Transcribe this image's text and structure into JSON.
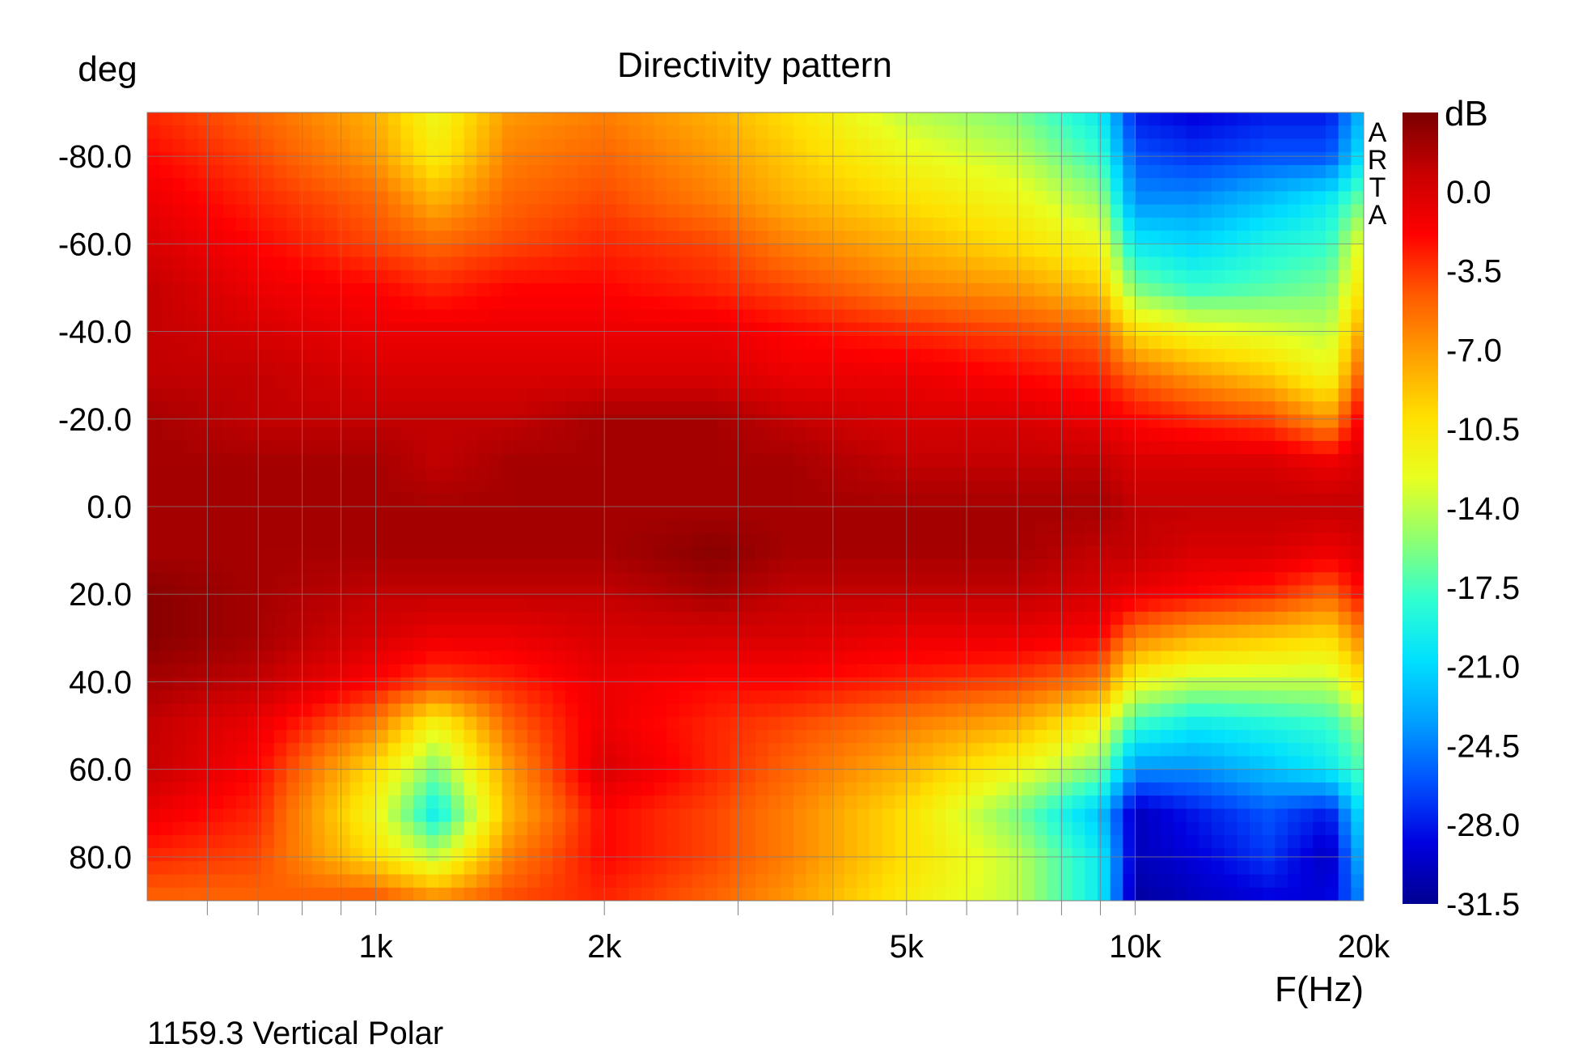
{
  "chart_data": {
    "type": "heatmap",
    "title": "Directivity pattern",
    "ylabel": "deg",
    "xlabel": "F(Hz)",
    "colorbar_label": "dB",
    "footer": "1159.3 Vertical Polar",
    "brand_letters": [
      "A",
      "R",
      "T",
      "A"
    ],
    "x_scale": "log",
    "xlim": [
      500,
      20000
    ],
    "ylim": [
      -90,
      90
    ],
    "y_reversed": true,
    "grid": true,
    "x_ticks": [
      {
        "value": 1000,
        "label": "1k"
      },
      {
        "value": 2000,
        "label": "2k"
      },
      {
        "value": 5000,
        "label": "5k"
      },
      {
        "value": 10000,
        "label": "10k"
      },
      {
        "value": 20000,
        "label": "20k"
      }
    ],
    "y_ticks": [
      {
        "value": -80,
        "label": "-80.0"
      },
      {
        "value": -60,
        "label": "-60.0"
      },
      {
        "value": -40,
        "label": "-40.0"
      },
      {
        "value": -20,
        "label": "-20.0"
      },
      {
        "value": 0,
        "label": "0.0"
      },
      {
        "value": 20,
        "label": "20.0"
      },
      {
        "value": 40,
        "label": "40.0"
      },
      {
        "value": 60,
        "label": "60.0"
      },
      {
        "value": 80,
        "label": "80.0"
      }
    ],
    "colorbar_ticks": [
      "0.0",
      "-3.5",
      "-7.0",
      "-10.5",
      "-14.0",
      "-17.5",
      "-21.0",
      "-24.5",
      "-28.0",
      "-31.5"
    ],
    "color_range": [
      -31.5,
      3.5
    ],
    "colormap": [
      "#7a0000",
      "#c80000",
      "#ff0000",
      "#ff5a00",
      "#ffa000",
      "#ffe000",
      "#e8ff20",
      "#90ff70",
      "#30ffd0",
      "#00e0ff",
      "#00a0ff",
      "#0050ff",
      "#0000e0",
      "#000090"
    ],
    "frequencies": [
      500,
      700,
      1000,
      1200,
      1500,
      2000,
      2800,
      3500,
      5000,
      7000,
      9000,
      10000,
      12000,
      15000,
      18000,
      20000
    ],
    "angles": [
      -90,
      -80,
      -70,
      -60,
      -50,
      -40,
      -30,
      -20,
      -10,
      0,
      10,
      20,
      30,
      40,
      50,
      60,
      70,
      80,
      90
    ],
    "values": [
      [
        -3,
        -5,
        -8,
        -12,
        -7,
        -6,
        -8,
        -10,
        -14,
        -16,
        -20,
        -28,
        -29,
        -28,
        -28,
        -22
      ],
      [
        -2,
        -4,
        -7,
        -11,
        -6,
        -5,
        -7,
        -9,
        -12,
        -14,
        -18,
        -26,
        -27,
        -26,
        -26,
        -20
      ],
      [
        -1,
        -3,
        -5,
        -8,
        -5,
        -4,
        -6,
        -8,
        -10,
        -12,
        -15,
        -24,
        -24,
        -22,
        -20,
        -16
      ],
      [
        0,
        -2,
        -4,
        -5,
        -4,
        -3,
        -4,
        -6,
        -8,
        -10,
        -12,
        -20,
        -21,
        -19,
        -18,
        -12
      ],
      [
        1,
        -1,
        -2,
        -3,
        -2,
        -2,
        -3,
        -4,
        -6,
        -7,
        -9,
        -16,
        -18,
        -17,
        -16,
        -10
      ],
      [
        1,
        0,
        -1,
        -1,
        -1,
        -1,
        -1,
        -2,
        -3,
        -4,
        -5,
        -10,
        -12,
        -13,
        -14,
        -7
      ],
      [
        1,
        1,
        0,
        0,
        0,
        0,
        0,
        -1,
        -1,
        -2,
        -3,
        -5,
        -7,
        -9,
        -12,
        -4
      ],
      [
        2,
        1,
        1,
        1,
        1,
        2,
        2,
        1,
        0,
        0,
        -1,
        -2,
        -3,
        -4,
        -7,
        -1
      ],
      [
        2,
        2,
        2,
        1,
        2,
        2,
        2,
        2,
        1,
        1,
        1,
        0,
        0,
        0,
        -1,
        0
      ],
      [
        2,
        2,
        2,
        2,
        2,
        2,
        2,
        2,
        2,
        2,
        2,
        1,
        1,
        1,
        1,
        1
      ],
      [
        2,
        2,
        2,
        2,
        2,
        2,
        3,
        2,
        2,
        2,
        1,
        1,
        0,
        0,
        -1,
        0
      ],
      [
        3,
        2,
        1,
        1,
        1,
        1,
        2,
        1,
        1,
        1,
        0,
        -1,
        -2,
        -3,
        -5,
        -2
      ],
      [
        3,
        2,
        0,
        -1,
        -1,
        0,
        0,
        0,
        -1,
        -1,
        -2,
        -6,
        -8,
        -9,
        -10,
        -6
      ],
      [
        2,
        1,
        -2,
        -4,
        -3,
        -1,
        -2,
        -2,
        -3,
        -4,
        -6,
        -12,
        -14,
        -14,
        -14,
        -10
      ],
      [
        1,
        -1,
        -6,
        -12,
        -5,
        -1,
        -3,
        -4,
        -6,
        -8,
        -12,
        -18,
        -20,
        -19,
        -18,
        -15
      ],
      [
        1,
        -2,
        -10,
        -16,
        -7,
        0,
        -3,
        -5,
        -8,
        -12,
        -16,
        -24,
        -24,
        -22,
        -20,
        -17
      ],
      [
        -1,
        -3,
        -12,
        -20,
        -8,
        -2,
        -4,
        -6,
        -10,
        -16,
        -22,
        -30,
        -28,
        -26,
        -28,
        -20
      ],
      [
        -3,
        -4,
        -10,
        -14,
        -6,
        -2,
        -4,
        -6,
        -10,
        -14,
        -20,
        -30,
        -29,
        -27,
        -30,
        -22
      ],
      [
        -5,
        -5,
        -4,
        -6,
        -4,
        -3,
        -5,
        -7,
        -11,
        -14,
        -20,
        -31,
        -30,
        -29,
        -29,
        -24
      ]
    ]
  }
}
